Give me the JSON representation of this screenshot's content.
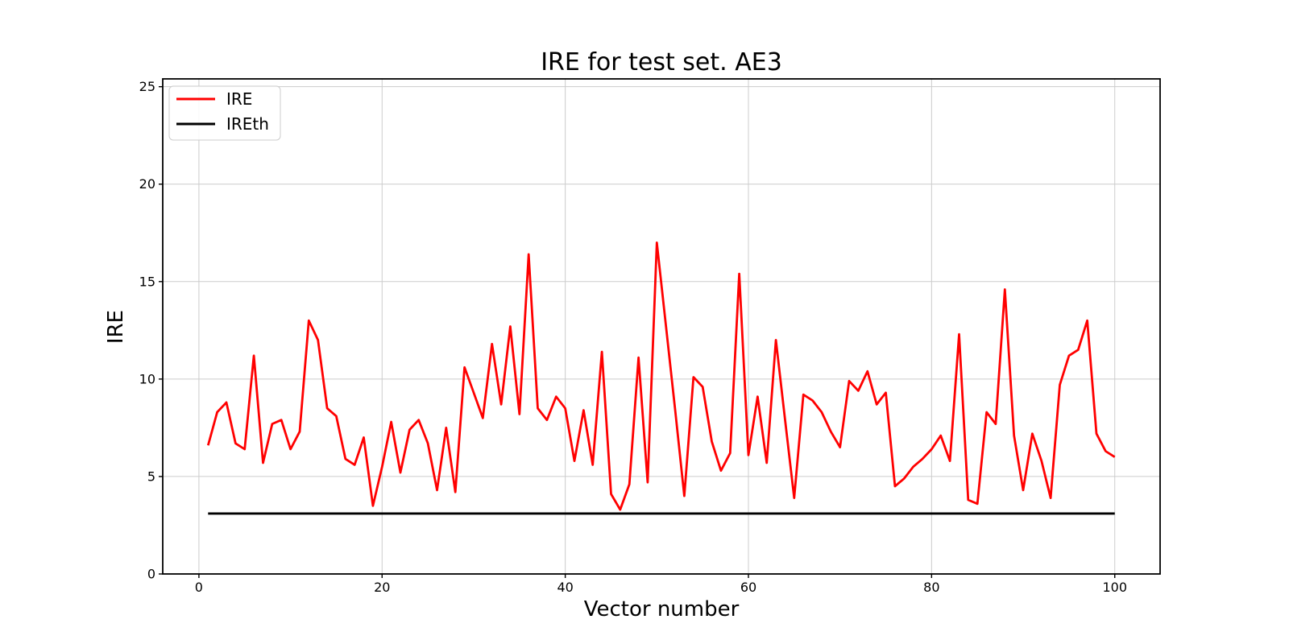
{
  "figure": {
    "background": "#ffffff",
    "text_color": "#000000"
  },
  "chart_data": {
    "type": "line",
    "title": "IRE for test set. AE3",
    "xlabel": "Vector number",
    "ylabel": "IRE",
    "xlim": [
      -3.95,
      104.95
    ],
    "ylim": [
      0,
      25.4
    ],
    "xticks": [
      0,
      20,
      40,
      60,
      80,
      100
    ],
    "yticks": [
      0,
      5,
      10,
      15,
      20,
      25
    ],
    "grid": true,
    "grid_color": "#cccccc",
    "legend_position": "upper left",
    "x_start": 1,
    "x_step": 1,
    "series": [
      {
        "name": "IRE",
        "type": "line",
        "color": "#ff0000",
        "values": [
          6.6,
          8.3,
          8.8,
          6.7,
          6.4,
          11.2,
          5.7,
          7.7,
          7.9,
          6.4,
          7.3,
          13.0,
          12.0,
          8.5,
          8.1,
          5.9,
          5.6,
          7.0,
          3.5,
          5.5,
          7.8,
          5.2,
          7.4,
          7.9,
          6.7,
          4.3,
          7.5,
          4.2,
          10.6,
          9.3,
          8.0,
          11.8,
          8.7,
          12.7,
          8.2,
          16.4,
          8.5,
          7.9,
          9.1,
          8.5,
          5.8,
          8.4,
          5.6,
          11.4,
          4.1,
          3.3,
          4.6,
          11.1,
          4.7,
          17.0,
          12.7,
          8.4,
          4.0,
          10.1,
          9.6,
          6.8,
          5.3,
          6.2,
          15.4,
          6.1,
          9.1,
          5.7,
          12.0,
          7.9,
          3.9,
          9.2,
          8.9,
          8.3,
          7.3,
          6.5,
          9.9,
          9.4,
          10.4,
          8.7,
          9.3,
          4.5,
          4.9,
          5.5,
          5.9,
          6.4,
          7.1,
          5.8,
          12.3,
          3.8,
          3.6,
          8.3,
          7.7,
          14.6,
          7.1,
          4.3,
          7.2,
          5.8,
          3.9,
          9.7,
          11.2,
          11.5,
          13.0,
          7.2,
          6.3,
          6.0
        ]
      },
      {
        "name": "IREth",
        "type": "hline",
        "color": "#000000",
        "value": 3.1,
        "x_range": [
          1,
          100
        ]
      }
    ]
  }
}
